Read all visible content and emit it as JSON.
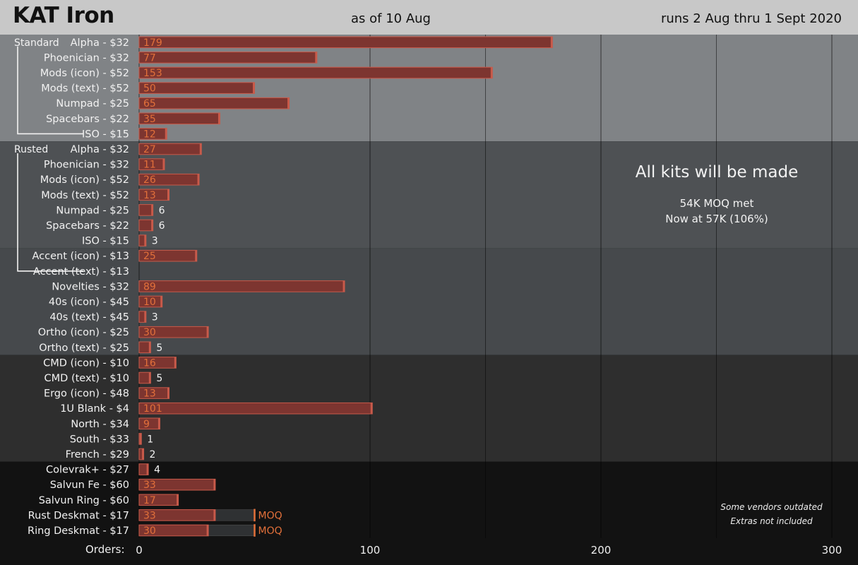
{
  "header": {
    "title": "KAT Iron",
    "as_of": "as of 10 Aug",
    "runs": "runs 2 Aug thru 1 Sept 2020"
  },
  "annotations": {
    "headline": "All kits will be made",
    "moq_line": "54K MOQ met",
    "now_line": "Now at 57K (106%)",
    "note_line1": "Some vendors outdated",
    "note_line2": "Extras not included",
    "orders_label": "Orders:"
  },
  "colors": {
    "header_bg": "#c8c8c8",
    "band_standard": "#808386",
    "band_rusted": "#4e5154",
    "band_rusted_accent": "#46494c",
    "band_addons": "#2e2e2e",
    "band_extras": "#121212",
    "bar_fill": "#7d3530",
    "bar_edge": "#c85a4a",
    "value_label": "#e2703a",
    "moq_color": "#e2703a"
  },
  "chart_data": {
    "type": "bar",
    "orientation": "horizontal",
    "title": "KAT Iron",
    "xlabel": "Orders:",
    "xlim": [
      0,
      300
    ],
    "xticks": [
      0,
      100,
      200,
      300
    ],
    "grid": true,
    "moq_marker_text": "MOQ",
    "groups": [
      {
        "name": "Standard",
        "bracket_start": 0,
        "bracket_end": 6
      },
      {
        "name": "Rusted",
        "bracket_start": 7,
        "bracket_end": 15
      }
    ],
    "categories": [
      "Alpha - $32",
      "Phoenician - $32",
      "Mods (icon) - $52",
      "Mods (text) - $52",
      "Numpad - $25",
      "Spacebars - $22",
      "ISO - $15",
      "Alpha - $32",
      "Phoenician - $32",
      "Mods (icon) - $52",
      "Mods (text) - $52",
      "Numpad - $25",
      "Spacebars - $22",
      "ISO - $15",
      "Accent (icon) - $13",
      "Accent (text) - $13",
      "Novelties - $32",
      "40s (icon) - $45",
      "40s (text) - $45",
      "Ortho (icon) - $25",
      "Ortho (text) - $25",
      "CMD (icon) - $10",
      "CMD (text) - $10",
      "Ergo (icon) - $48",
      "1U Blank - $4",
      "North - $34",
      "South - $33",
      "French - $29",
      "Colevrak+ - $27",
      "Salvun Fe - $60",
      "Salvun Ring  - $60",
      "Rust Deskmat - $17",
      "Ring Deskmat - $17"
    ],
    "values": [
      179,
      77,
      153,
      50,
      65,
      35,
      12,
      27,
      11,
      26,
      13,
      6,
      6,
      3,
      25,
      null,
      89,
      10,
      3,
      30,
      5,
      16,
      5,
      13,
      101,
      9,
      1,
      2,
      4,
      33,
      17,
      33,
      30
    ],
    "moq": [
      null,
      null,
      null,
      null,
      null,
      null,
      null,
      null,
      null,
      null,
      null,
      null,
      null,
      null,
      null,
      null,
      null,
      null,
      null,
      null,
      null,
      null,
      null,
      null,
      null,
      null,
      null,
      null,
      null,
      null,
      null,
      50,
      50
    ],
    "bands": [
      {
        "name": "standard",
        "start": 0,
        "end": 6,
        "color": "#808386"
      },
      {
        "name": "rusted",
        "start": 7,
        "end": 13,
        "color": "#4e5154"
      },
      {
        "name": "rusted-accents-novelties",
        "start": 14,
        "end": 20,
        "color": "#46494c"
      },
      {
        "name": "addons",
        "start": 21,
        "end": 27,
        "color": "#2e2e2e"
      },
      {
        "name": "extras",
        "start": 28,
        "end": 32,
        "color": "#121212"
      }
    ]
  }
}
